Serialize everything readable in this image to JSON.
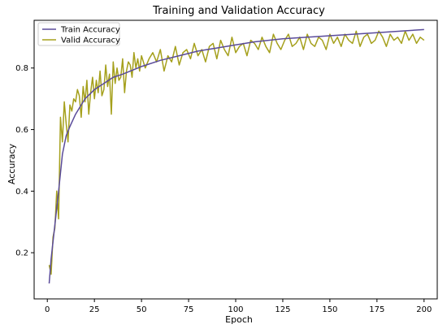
{
  "chart_data": {
    "type": "line",
    "title": "Training and Validation Accuracy",
    "xlabel": "Epoch",
    "ylabel": "Accuracy",
    "xlim": [
      -7,
      207
    ],
    "ylim": [
      0.05,
      0.955
    ],
    "xticks": [
      0,
      25,
      50,
      75,
      100,
      125,
      150,
      175,
      200
    ],
    "yticks": [
      0.2,
      0.4,
      0.6,
      0.8
    ],
    "ytick_labels": [
      "0.2",
      "0.4",
      "0.6",
      "0.8"
    ],
    "grid": false,
    "legend_position": "top-left",
    "series": [
      {
        "name": "Train Accuracy",
        "color": "#5a4b9a",
        "x": [
          1,
          2,
          4,
          6,
          8,
          10,
          12,
          15,
          20,
          25,
          30,
          35,
          40,
          50,
          60,
          70,
          80,
          90,
          100,
          110,
          125,
          150,
          175,
          200
        ],
        "y": [
          0.1,
          0.18,
          0.29,
          0.4,
          0.52,
          0.58,
          0.61,
          0.65,
          0.7,
          0.73,
          0.75,
          0.77,
          0.78,
          0.805,
          0.825,
          0.84,
          0.855,
          0.865,
          0.875,
          0.885,
          0.895,
          0.905,
          0.915,
          0.925
        ]
      },
      {
        "name": "Valid Accuracy",
        "color": "#a5a01c",
        "x": [
          1,
          2,
          3,
          4,
          5,
          6,
          7,
          8,
          9,
          10,
          11,
          12,
          13,
          14,
          15,
          16,
          17,
          18,
          19,
          20,
          21,
          22,
          23,
          24,
          25,
          26,
          27,
          28,
          29,
          30,
          31,
          32,
          33,
          34,
          35,
          36,
          37,
          38,
          39,
          40,
          41,
          42,
          43,
          44,
          45,
          46,
          47,
          48,
          49,
          50,
          52,
          54,
          56,
          58,
          60,
          62,
          64,
          66,
          68,
          70,
          72,
          74,
          76,
          78,
          80,
          82,
          84,
          86,
          88,
          90,
          92,
          94,
          96,
          98,
          100,
          102,
          104,
          106,
          108,
          110,
          112,
          114,
          116,
          118,
          120,
          122,
          124,
          126,
          128,
          130,
          132,
          134,
          136,
          138,
          140,
          142,
          144,
          146,
          148,
          150,
          152,
          154,
          156,
          158,
          160,
          162,
          164,
          166,
          168,
          170,
          172,
          174,
          176,
          178,
          180,
          182,
          184,
          186,
          188,
          190,
          192,
          194,
          196,
          198,
          200
        ],
        "y": [
          0.16,
          0.13,
          0.25,
          0.28,
          0.4,
          0.31,
          0.64,
          0.56,
          0.69,
          0.62,
          0.56,
          0.68,
          0.66,
          0.7,
          0.69,
          0.73,
          0.71,
          0.64,
          0.74,
          0.69,
          0.76,
          0.65,
          0.72,
          0.77,
          0.7,
          0.76,
          0.72,
          0.79,
          0.71,
          0.73,
          0.81,
          0.74,
          0.78,
          0.65,
          0.82,
          0.75,
          0.8,
          0.76,
          0.77,
          0.83,
          0.72,
          0.79,
          0.82,
          0.81,
          0.77,
          0.85,
          0.8,
          0.83,
          0.79,
          0.84,
          0.8,
          0.83,
          0.85,
          0.82,
          0.86,
          0.79,
          0.84,
          0.82,
          0.87,
          0.81,
          0.85,
          0.86,
          0.83,
          0.88,
          0.84,
          0.86,
          0.82,
          0.87,
          0.88,
          0.83,
          0.89,
          0.86,
          0.84,
          0.9,
          0.85,
          0.87,
          0.88,
          0.84,
          0.89,
          0.88,
          0.86,
          0.9,
          0.87,
          0.85,
          0.91,
          0.88,
          0.86,
          0.89,
          0.91,
          0.87,
          0.88,
          0.9,
          0.86,
          0.91,
          0.88,
          0.87,
          0.9,
          0.89,
          0.86,
          0.91,
          0.88,
          0.9,
          0.87,
          0.91,
          0.89,
          0.88,
          0.92,
          0.87,
          0.9,
          0.91,
          0.88,
          0.89,
          0.92,
          0.9,
          0.87,
          0.91,
          0.89,
          0.9,
          0.88,
          0.92,
          0.89,
          0.91,
          0.88,
          0.9,
          0.89
        ]
      }
    ]
  }
}
